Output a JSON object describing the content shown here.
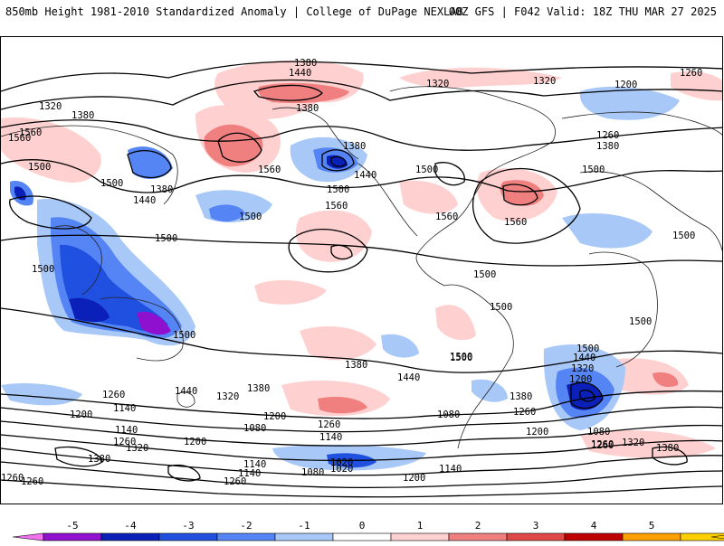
{
  "header": {
    "title": "850mb Height 1981-2010 Standardized Anomaly | College of DuPage NEXLAB",
    "run_info": "00Z GFS | F042 Valid: 18Z THU MAR 27 2025"
  },
  "map": {
    "contour_labels": [
      "1380",
      "1440",
      "1260",
      "1320",
      "1200",
      "1320",
      "1380",
      "1320",
      "1380",
      "1560",
      "1500",
      "1500",
      "1440",
      "1380",
      "1380",
      "1440",
      "1260",
      "1380",
      "1560",
      "1500",
      "1500",
      "1500",
      "1560",
      "1560",
      "1500",
      "1500",
      "1560",
      "1500",
      "1500",
      "1500",
      "1500",
      "1500",
      "1500",
      "1440",
      "1500",
      "1500",
      "1380",
      "1320",
      "1440",
      "1380",
      "1320",
      "1440",
      "1260",
      "1380",
      "1200",
      "1200",
      "1140",
      "1200",
      "1080",
      "1260",
      "1080",
      "1260",
      "1200",
      "1260",
      "1140",
      "1140",
      "1320",
      "1260",
      "1200",
      "1380",
      "1140",
      "1080",
      "1020",
      "1140",
      "1200",
      "1260",
      "1260",
      "1500",
      "1080",
      "1260",
      "1320",
      "1380",
      "1560",
      "1260",
      "1140",
      "1020"
    ]
  },
  "colorbar": {
    "ticks": [
      "-5",
      "-4",
      "-3",
      "-2",
      "-1",
      "0",
      "1",
      "2",
      "3",
      "4",
      "5"
    ],
    "colors": [
      "#f070f0",
      "#9010d0",
      "#0a20b8",
      "#2050e0",
      "#5585f5",
      "#a8c8f8",
      "#ffffff",
      "#ffd0d0",
      "#f08080",
      "#e04848",
      "#c00000",
      "#ffa000",
      "#ffd000"
    ]
  }
}
